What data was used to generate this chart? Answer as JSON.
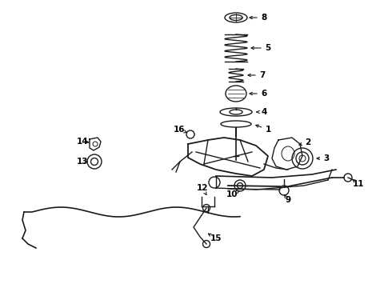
{
  "background": "#ffffff",
  "line_color": "#1a1a1a",
  "label_color": "#000000",
  "fig_w": 4.9,
  "fig_h": 3.6,
  "dpi": 100
}
